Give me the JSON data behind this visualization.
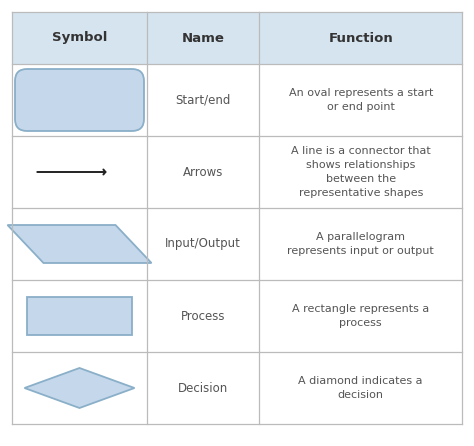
{
  "header_bg": "#d6e4f0",
  "row_bg": "#ffffff",
  "border_color": "#bbbbbb",
  "shape_fill": "#c5d8eb",
  "shape_edge": "#8aafc8",
  "header_text_color": "#333333",
  "body_text_color": "#555555",
  "header_labels": [
    "Symbol",
    "Name",
    "Function"
  ],
  "rows": [
    {
      "name": "Start/end",
      "function": "An oval represents a start\nor end point",
      "shape": "oval"
    },
    {
      "name": "Arrows",
      "function": "A line is a connector that\nshows relationships\nbetween the\nrepresentative shapes",
      "shape": "arrow"
    },
    {
      "name": "Input/Output",
      "function": "A parallelogram\nrepresents input or output",
      "shape": "parallelogram"
    },
    {
      "name": "Process",
      "function": "A rectangle represents a\nprocess",
      "shape": "rectangle"
    },
    {
      "name": "Decision",
      "function": "A diamond indicates a\ndecision",
      "shape": "diamond"
    }
  ],
  "figsize": [
    4.74,
    4.46
  ],
  "dpi": 100
}
